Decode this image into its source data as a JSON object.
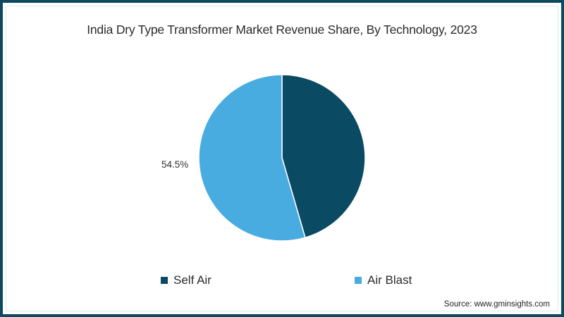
{
  "title": "India Dry Type Transformer Market Revenue Share, By Technology, 2023",
  "source": "Source: www.gminsights.com",
  "colors": {
    "frame_border": "#0d4a5f",
    "self_air": "#0a4b63",
    "air_blast": "#48ace0"
  },
  "legend": [
    {
      "label": "Self Air",
      "color": "#0a4b63"
    },
    {
      "label": "Air Blast",
      "color": "#48ace0"
    }
  ],
  "labels": {
    "air_blast_pct": "54.5%"
  },
  "chart_data": {
    "type": "pie",
    "title": "India Dry Type Transformer Market Revenue Share, By Technology, 2023",
    "categories": [
      "Self Air",
      "Air Blast"
    ],
    "values": [
      45.5,
      54.5
    ],
    "unit": "%",
    "colors": [
      "#0a4b63",
      "#48ace0"
    ],
    "data_labels": [
      null,
      "54.5%"
    ],
    "start_angle_deg": 0,
    "direction": "clockwise",
    "legend_position": "bottom"
  }
}
